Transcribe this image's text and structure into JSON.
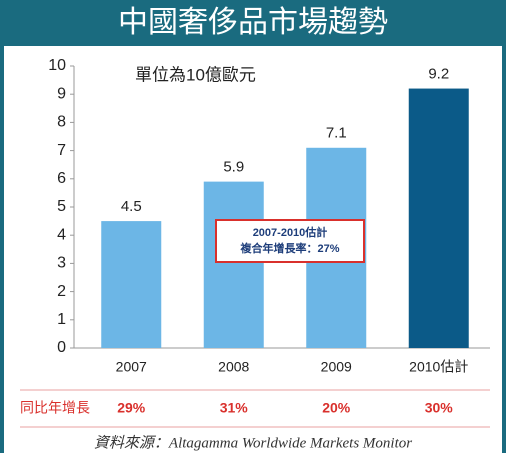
{
  "chart_data": {
    "type": "bar",
    "title": "中國奢侈品市場趨勢",
    "subtitle": "單位為10億歐元",
    "categories": [
      "2007",
      "2008",
      "2009",
      "2010估計"
    ],
    "values": [
      4.5,
      5.9,
      7.1,
      9.2
    ],
    "colors": [
      "#6cb6e6",
      "#6cb6e6",
      "#6cb6e6",
      "#0b5a88"
    ],
    "ylim": [
      0,
      10
    ],
    "yticks": [
      0,
      1,
      2,
      3,
      4,
      5,
      6,
      7,
      8,
      9,
      10
    ],
    "grid": false,
    "annotation": [
      "2007-2010估計",
      "複合年增長率：27%"
    ],
    "growth": {
      "label": "同比年增長",
      "values": [
        29,
        31,
        20,
        30
      ],
      "value_labels": [
        "29%",
        "31%",
        "20%",
        "30%"
      ]
    },
    "source": "資料來源：Altagamma Worldwide Markets Monitor"
  }
}
